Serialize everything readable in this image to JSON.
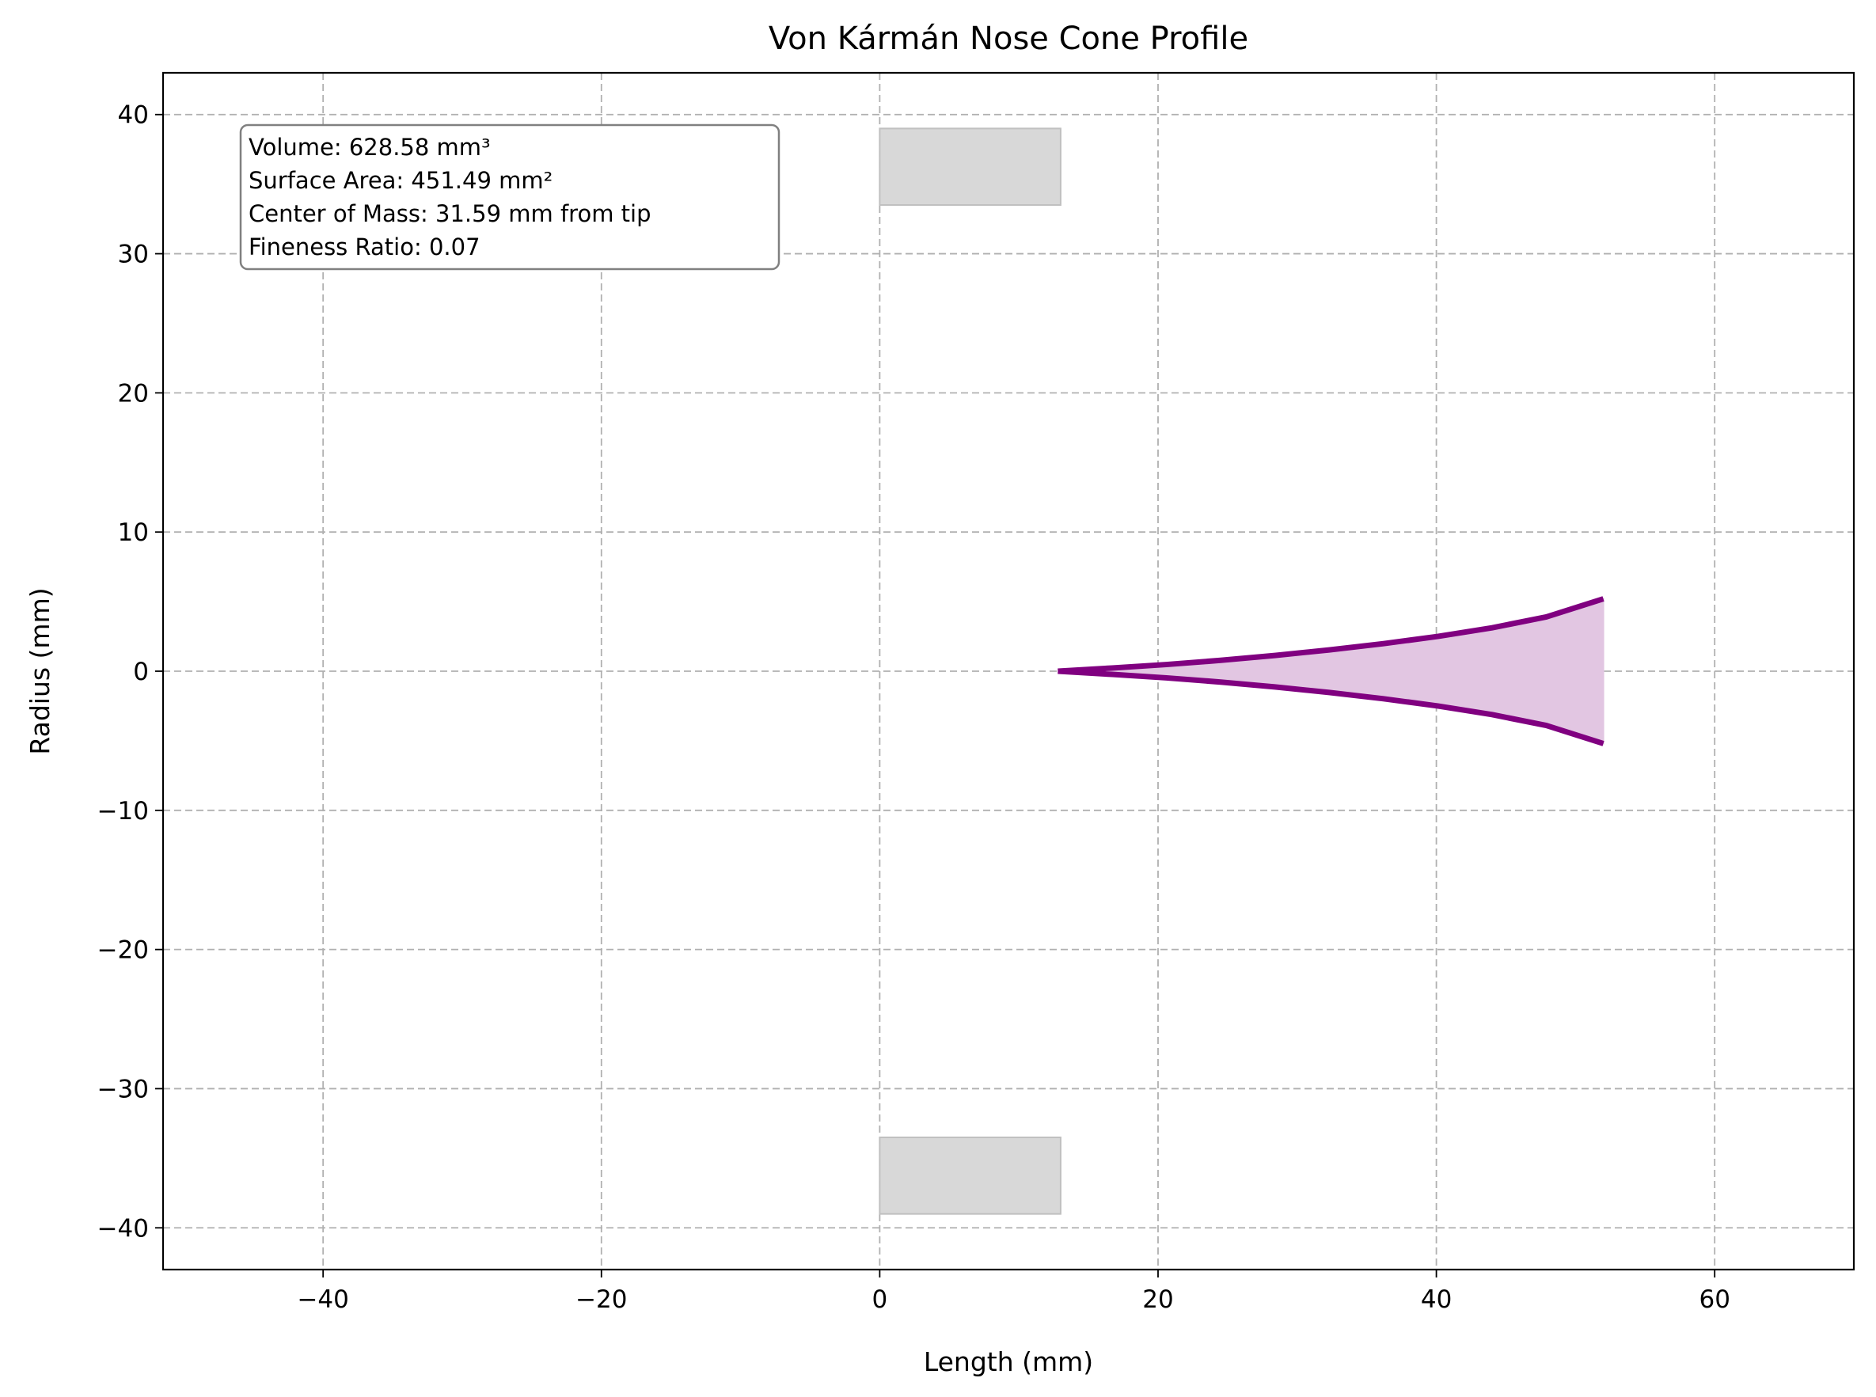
{
  "chart_data": {
    "type": "line",
    "title": "Von Kármán Nose Cone Profile",
    "xlabel": "Length (mm)",
    "ylabel": "Radius (mm)",
    "xlim": [
      -51.5,
      70
    ],
    "ylim": [
      -43,
      43
    ],
    "xticks": [
      -40,
      -20,
      0,
      20,
      40,
      60
    ],
    "yticks": [
      -40,
      -30,
      -20,
      -10,
      0,
      10,
      20,
      30,
      40
    ],
    "xtick_labels": [
      "−40",
      "−20",
      "0",
      "20",
      "40",
      "60"
    ],
    "ytick_labels": [
      "−40",
      "−30",
      "−20",
      "−10",
      "0",
      "10",
      "20",
      "30",
      "40"
    ],
    "grid": true,
    "colors": {
      "profile": "#800080",
      "fill": "#e2c6e2",
      "block": "#d8d8d8",
      "block_edge": "#c0c0c0",
      "grid": "#b0b0b0"
    },
    "series": [
      {
        "name": "",
        "x": [
          12.8,
          16.7,
          20.6,
          24.5,
          28.4,
          32.3,
          36.2,
          40.1,
          44.0,
          47.9,
          52.0
        ],
        "y": [
          0.0,
          0.23,
          0.48,
          0.78,
          1.13,
          1.53,
          1.98,
          2.5,
          3.12,
          3.9,
          5.2
        ]
      }
    ],
    "mirrored": true,
    "filled": true,
    "rectangles": [
      {
        "x": [
          0,
          13
        ],
        "y": [
          33.5,
          39
        ]
      },
      {
        "x": [
          0,
          13
        ],
        "y": [
          -39,
          -33.5
        ]
      }
    ],
    "info_box": {
      "lines": [
        "Volume: 628.58 mm³",
        "Surface Area: 451.49 mm²",
        "Center of Mass: 31.59 mm from tip",
        "Fineness Ratio: 0.07"
      ]
    }
  }
}
